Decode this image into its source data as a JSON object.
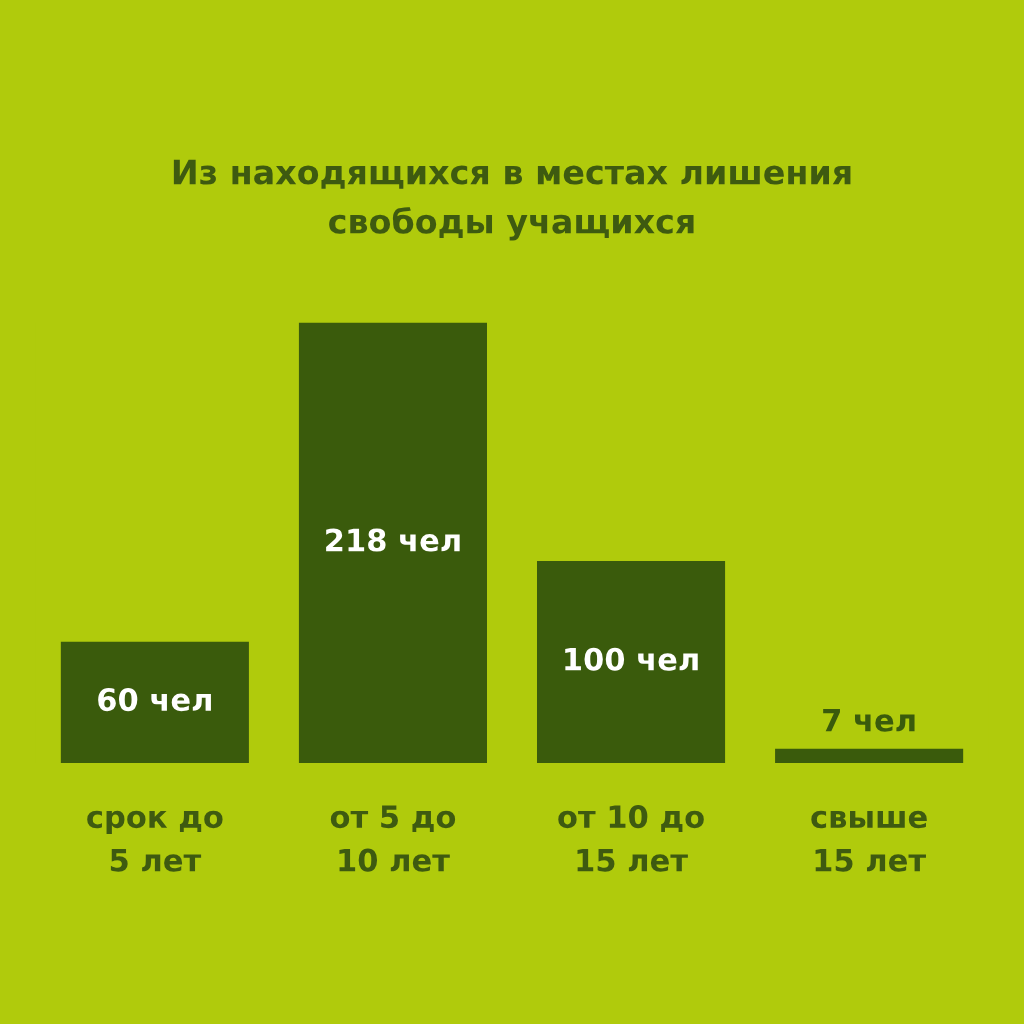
{
  "chart_data": {
    "type": "bar",
    "title": "Из находящихся в местах лишения\nсвободы учащихся",
    "categories": [
      "срок до\n5 лет",
      "от 5 до\n10 лет",
      "от 10 до\n15 лет",
      "свыше\n15 лет"
    ],
    "values": [
      60,
      218,
      100,
      7
    ],
    "color": "#3a5b0c",
    "value_labels": [
      "60 чел",
      "218 чел",
      "100 чел",
      "7 чел"
    ],
    "tick_labels": "x"
  }
}
